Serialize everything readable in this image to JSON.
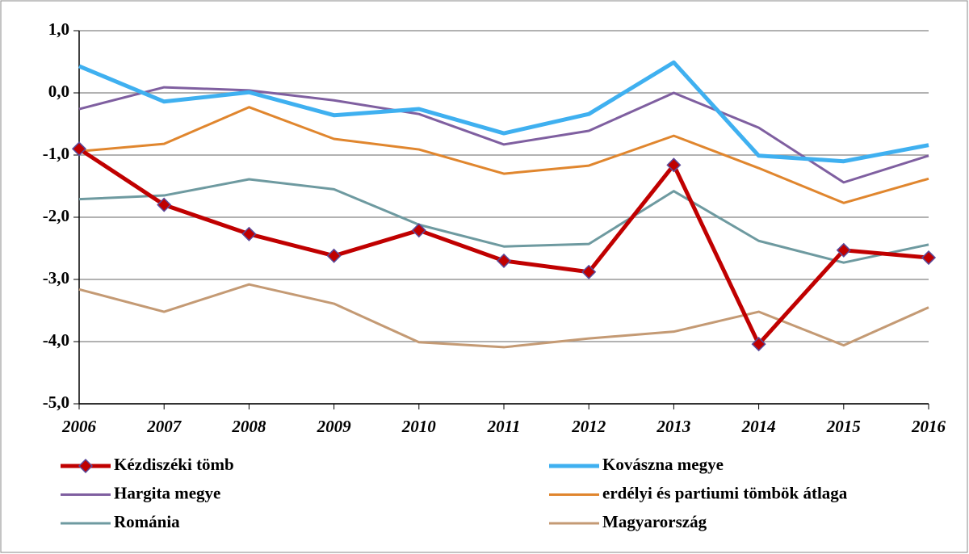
{
  "chart_data": {
    "type": "line",
    "x": [
      2006,
      2007,
      2008,
      2009,
      2010,
      2011,
      2012,
      2013,
      2014,
      2015,
      2016
    ],
    "xlim": [
      2006,
      2016
    ],
    "xticks": [
      2006,
      2007,
      2008,
      2009,
      2010,
      2011,
      2012,
      2013,
      2014,
      2015,
      2016
    ],
    "ylim": [
      -5,
      1
    ],
    "yticks": [
      {
        "value": -5,
        "label": "-5,0"
      },
      {
        "value": -4,
        "label": "-4,0"
      },
      {
        "value": -3,
        "label": "-3,0"
      },
      {
        "value": -2,
        "label": "-2,0"
      },
      {
        "value": -1,
        "label": "-1,0"
      },
      {
        "value": 0,
        "label": "0,0"
      },
      {
        "value": 1,
        "label": "1,0"
      }
    ],
    "grid": true,
    "legend": "bottom",
    "series": [
      {
        "name": "Kézdiszéki tömb",
        "color": "#c00000",
        "marker": "diamond",
        "values": [
          -0.9,
          -1.8,
          -2.27,
          -2.62,
          -2.21,
          -2.7,
          -2.88,
          -1.16,
          -4.04,
          -2.53,
          -2.65
        ]
      },
      {
        "name": "Kovászna megye",
        "color": "#3fb0f0",
        "values": [
          0.43,
          -0.14,
          0.01,
          -0.36,
          -0.26,
          -0.65,
          -0.34,
          0.49,
          -1.01,
          -1.1,
          -0.84
        ]
      },
      {
        "name": "Hargita megye",
        "color": "#7f5fa0",
        "values": [
          -0.26,
          0.09,
          0.04,
          -0.12,
          -0.34,
          -0.83,
          -0.61,
          0.0,
          -0.56,
          -1.44,
          -1.01
        ]
      },
      {
        "name": "erdélyi és partiumi tömbök átlaga",
        "color": "#e0862e",
        "values": [
          -0.94,
          -0.82,
          -0.23,
          -0.74,
          -0.91,
          -1.3,
          -1.17,
          -0.69,
          -1.21,
          -1.77,
          -1.38
        ]
      },
      {
        "name": "Románia",
        "color": "#6e9aa0",
        "values": [
          -1.71,
          -1.65,
          -1.39,
          -1.55,
          -2.12,
          -2.47,
          -2.43,
          -1.58,
          -2.38,
          -2.73,
          -2.44
        ]
      },
      {
        "name": "Magyarország",
        "color": "#c49a74",
        "values": [
          -3.16,
          -3.52,
          -3.08,
          -3.39,
          -4.01,
          -4.09,
          -3.95,
          -3.84,
          -3.52,
          -4.06,
          -3.45
        ]
      }
    ]
  }
}
